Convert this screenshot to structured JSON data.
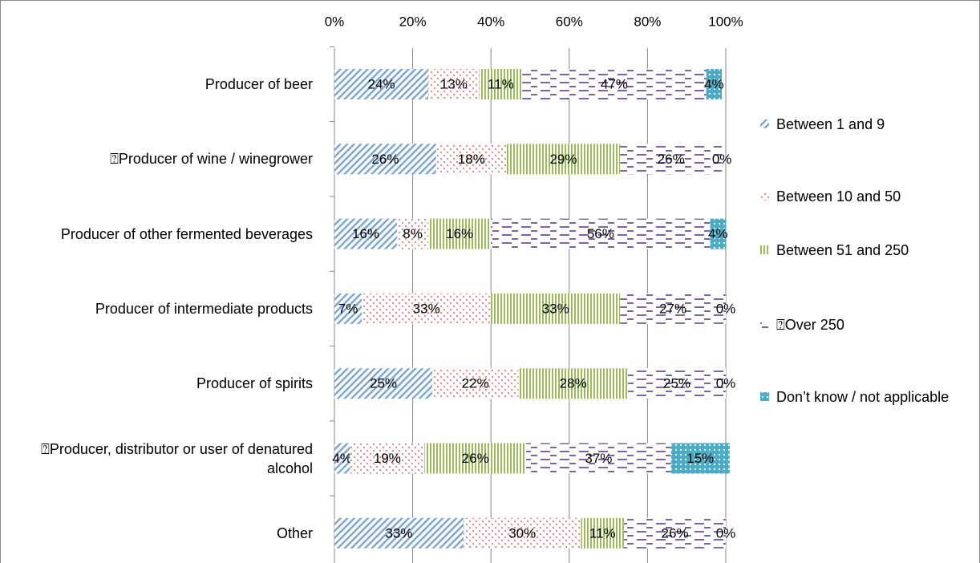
{
  "chart_data": {
    "type": "stacked_barh",
    "categories": [
      "Producer of beer",
      "⍰Producer of wine / winegrower",
      "Producer of other fermented beverages",
      "Producer of intermediate products",
      "Producer of spirits",
      "⍰Producer, distributor or user of denatured alcohol",
      "Other"
    ],
    "series": [
      {
        "name": "Between 1 and 9",
        "color": "#7ea6d6",
        "values": [
          24,
          26,
          16,
          7,
          25,
          4,
          33
        ],
        "value_labels": [
          "24%",
          "26%",
          "16%",
          "7%",
          "25%",
          "4%",
          "33%"
        ]
      },
      {
        "name": "Between 10 and 50",
        "color": "#e58a8a",
        "values": [
          13,
          18,
          8,
          33,
          22,
          19,
          30
        ],
        "value_labels": [
          "13%",
          "18%",
          "8%",
          "33%",
          "22%",
          "19%",
          "30%"
        ]
      },
      {
        "name": "Between 51 and 250",
        "color": "#9bbb59",
        "values": [
          11,
          29,
          16,
          33,
          28,
          26,
          11
        ],
        "value_labels": [
          "11%",
          "29%",
          "16%",
          "33%",
          "28%",
          "26%",
          "11%"
        ]
      },
      {
        "name": "⍰Over 250",
        "color": "#8064a2",
        "values": [
          47,
          26,
          56,
          27,
          25,
          37,
          26
        ],
        "value_labels": [
          "47%",
          "26%",
          "56%",
          "27%",
          "25%",
          "37%",
          "26%"
        ]
      },
      {
        "name": "Don’t know / not applicable",
        "color": "#4bacc6",
        "values": [
          4,
          0,
          4,
          0,
          0,
          15,
          0
        ],
        "value_labels": [
          "4%",
          "0%",
          "4%",
          "0%",
          "0%",
          "15%",
          "0%"
        ]
      }
    ],
    "xlim": [
      0,
      100
    ],
    "xticks": [
      {
        "value": 0,
        "label": "0%"
      },
      {
        "value": 20,
        "label": "20%"
      },
      {
        "value": 40,
        "label": "40%"
      },
      {
        "value": 60,
        "label": "60%"
      },
      {
        "value": 80,
        "label": "80%"
      },
      {
        "value": 100,
        "label": "100%"
      }
    ],
    "grid": true,
    "legend": "right"
  }
}
